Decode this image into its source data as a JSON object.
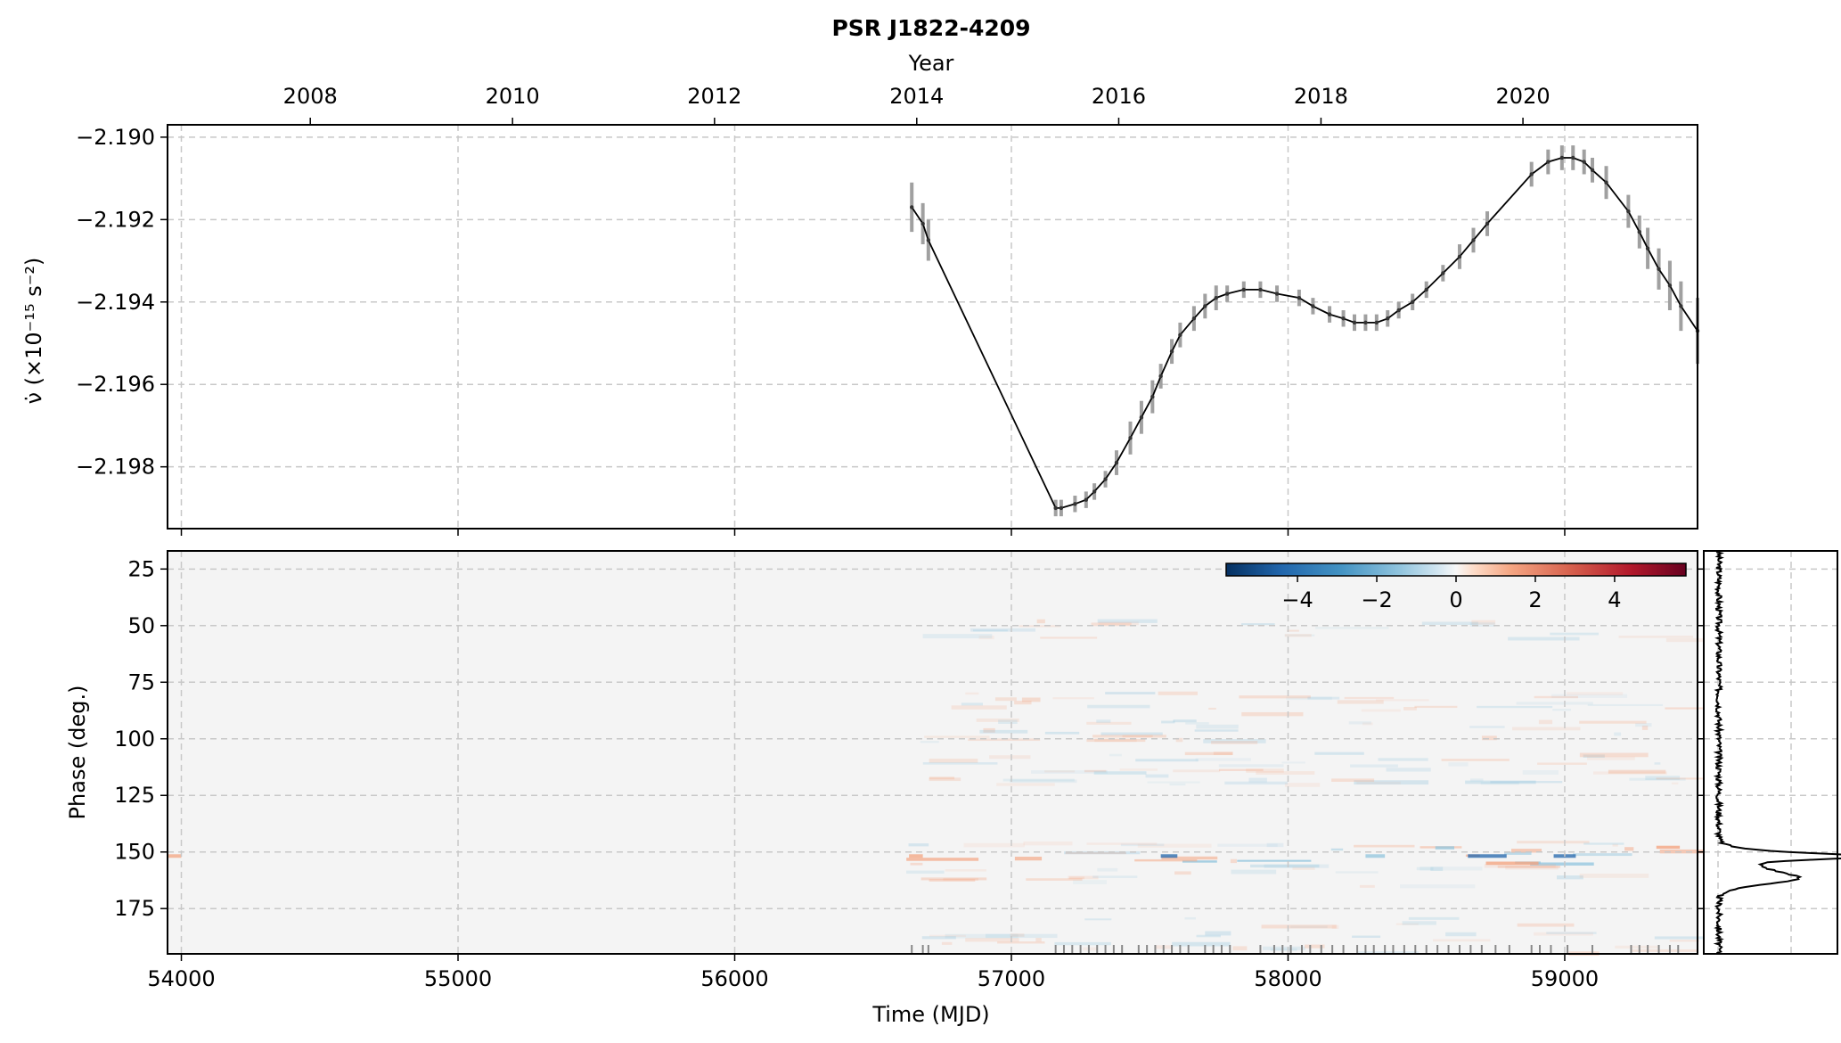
{
  "title": "PSR J1822-4209",
  "chart_data": [
    {
      "type": "line",
      "panel": "spin-down rate",
      "title": "PSR J1822-4209",
      "xlabel": "",
      "ylabel": "ν̇ (×10⁻¹⁵ s⁻²)",
      "top_axis_label": "Year",
      "top_ticks": [
        "2008",
        "2010",
        "2012",
        "2014",
        "2016",
        "2018",
        "2020"
      ],
      "xlim": [
        53950,
        59480
      ],
      "ylim": [
        -2.1995,
        -2.1897
      ],
      "yticks": [
        -2.19,
        -2.192,
        -2.194,
        -2.196,
        -2.198
      ],
      "ytick_labels": [
        "−2.190",
        "−2.192",
        "−2.194",
        "−2.196",
        "−2.198"
      ],
      "grid": true,
      "x": [
        56640,
        56680,
        56700,
        57160,
        57180,
        57230,
        57270,
        57300,
        57340,
        57380,
        57430,
        57470,
        57510,
        57540,
        57580,
        57610,
        57660,
        57700,
        57740,
        57780,
        57840,
        57900,
        57960,
        58040,
        58090,
        58150,
        58200,
        58240,
        58280,
        58320,
        58360,
        58400,
        58450,
        58500,
        58560,
        58620,
        58670,
        58720,
        58880,
        58940,
        58990,
        59030,
        59070,
        59100,
        59150,
        59230,
        59270,
        59300,
        59340,
        59380,
        59420,
        59480
      ],
      "y": [
        -2.1917,
        -2.1921,
        -2.1925,
        -2.199,
        -2.199,
        -2.1989,
        -2.1988,
        -2.1986,
        -2.1983,
        -2.1979,
        -2.1973,
        -2.1968,
        -2.1963,
        -2.1958,
        -2.1952,
        -2.1948,
        -2.1944,
        -2.1941,
        -2.1939,
        -2.1938,
        -2.1937,
        -2.1937,
        -2.1938,
        -2.1939,
        -2.1941,
        -2.1943,
        -2.1944,
        -2.1945,
        -2.1945,
        -2.1945,
        -2.1944,
        -2.1942,
        -2.194,
        -2.1937,
        -2.1933,
        -2.1929,
        -2.1925,
        -2.1921,
        -2.1909,
        -2.1906,
        -2.1905,
        -2.1905,
        -2.1906,
        -2.1908,
        -2.1911,
        -2.1918,
        -2.1923,
        -2.1927,
        -2.1932,
        -2.1936,
        -2.1941,
        -2.1947
      ],
      "err": [
        0.0006,
        0.0005,
        0.0005,
        0.0002,
        0.0002,
        0.0002,
        0.0002,
        0.0002,
        0.0002,
        0.0003,
        0.0004,
        0.0004,
        0.0004,
        0.0003,
        0.0003,
        0.0003,
        0.0003,
        0.0003,
        0.0003,
        0.0002,
        0.0002,
        0.0002,
        0.0002,
        0.0002,
        0.0002,
        0.0002,
        0.0002,
        0.0002,
        0.0002,
        0.0002,
        0.0002,
        0.0002,
        0.0002,
        0.0002,
        0.0002,
        0.0003,
        0.0003,
        0.0003,
        0.0003,
        0.0003,
        0.0003,
        0.0003,
        0.0003,
        0.0003,
        0.0004,
        0.0004,
        0.0004,
        0.0005,
        0.0005,
        0.0006,
        0.0006,
        0.0008
      ],
      "colors": {
        "line": "#000000",
        "errorbar": "#a0a0a0"
      }
    },
    {
      "type": "heatmap",
      "panel": "profile residuals",
      "xlabel": "Time (MJD)",
      "ylabel": "Phase (deg.)",
      "xlim": [
        53950,
        59480
      ],
      "ylim": [
        195,
        17
      ],
      "xticks": [
        54000,
        55000,
        56000,
        57000,
        58000,
        59000
      ],
      "xtick_labels": [
        "54000",
        "55000",
        "56000",
        "57000",
        "58000",
        "59000"
      ],
      "yticks": [
        25,
        50,
        75,
        100,
        125,
        150,
        175
      ],
      "ytick_labels": [
        "25",
        "50",
        "75",
        "100",
        "125",
        "150",
        "175"
      ],
      "colorbar": {
        "cmap": "RdBu_r",
        "range": [
          -5.8,
          5.8
        ],
        "ticks": [
          -4,
          -2,
          0,
          2,
          4
        ],
        "tick_labels": [
          "−4",
          "−2",
          "0",
          "2",
          "4"
        ],
        "placement": "top-right"
      },
      "observation_mjds": [
        56640,
        56680,
        56700,
        57160,
        57190,
        57220,
        57250,
        57280,
        57310,
        57340,
        57370,
        57400,
        57460,
        57490,
        57520,
        57550,
        57580,
        57610,
        57640,
        57700,
        57730,
        57760,
        57790,
        57900,
        57950,
        57980,
        58010,
        58050,
        58080,
        58120,
        58160,
        58200,
        58250,
        58280,
        58310,
        58350,
        58380,
        58420,
        58460,
        58500,
        58540,
        58580,
        58620,
        58660,
        58700,
        58750,
        58800,
        58880,
        58910,
        58950,
        59010,
        59100,
        59240,
        59270,
        59300,
        59340,
        59380,
        59410
      ],
      "grid": true,
      "colors": {
        "background": "#f4f4f4",
        "grid": "#c8c8c8"
      }
    },
    {
      "type": "line",
      "panel": "mean profile",
      "xlabel": "",
      "ylabel": "",
      "ylim": [
        195,
        17
      ],
      "peak_phase": 152,
      "colors": {
        "line": "#000000"
      }
    }
  ]
}
